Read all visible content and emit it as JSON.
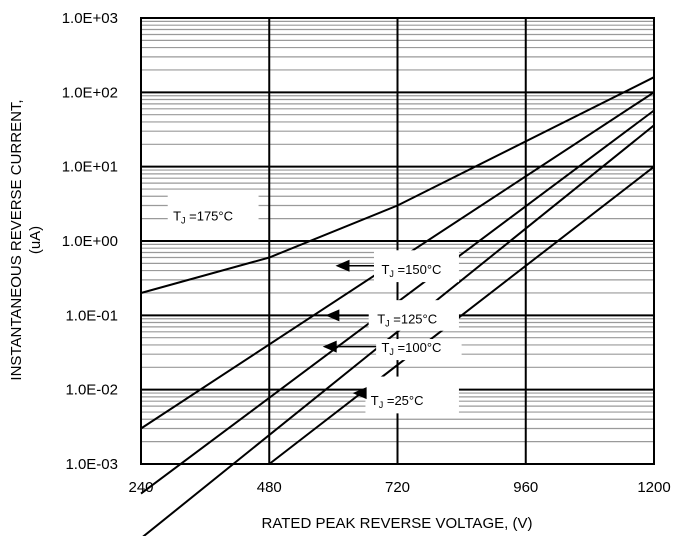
{
  "chart_data": {
    "type": "line",
    "title": "",
    "xlabel": "RATED PEAK REVERSE VOLTAGE, (V)",
    "ylabel_line1": "INSTANTANEOUS REVERSE CURRENT,",
    "ylabel_line2": "(uA)",
    "xlim": [
      240,
      1200
    ],
    "ylim": [
      0.001,
      1000
    ],
    "yscale": "log",
    "grid": true,
    "x_ticks": [
      "240",
      "480",
      "720",
      "960",
      "1200"
    ],
    "y_ticks": [
      "1.0E-03",
      "1.0E-02",
      "1.0E-01",
      "1.0E+00",
      "1.0E+01",
      "1.0E+02",
      "1.0E+03"
    ],
    "series": [
      {
        "name": "TJ =175°C",
        "x": [
          240,
          480,
          720,
          1200
        ],
        "y": [
          0.2,
          0.6,
          3.0,
          160
        ]
      },
      {
        "name": "TJ =150°C",
        "x": [
          240,
          1200
        ],
        "y": [
          0.003,
          100
        ]
      },
      {
        "name": "TJ =125°C",
        "x": [
          240,
          1200
        ],
        "y": [
          0.0004,
          57
        ]
      },
      {
        "name": "TJ =100°C",
        "x": [
          240,
          1200
        ],
        "y": [
          0.0001,
          36
        ]
      },
      {
        "name": "TJ =25°C",
        "x": [
          480,
          1200
        ],
        "y": [
          0.001,
          10
        ]
      }
    ],
    "annotations": [
      {
        "prefix": "T",
        "sub": "J",
        "suffix": " =175°C"
      },
      {
        "prefix": "T",
        "sub": "J",
        "suffix": " =150°C"
      },
      {
        "prefix": "T",
        "sub": "J",
        "suffix": " =125°C"
      },
      {
        "prefix": "T",
        "sub": "J",
        "suffix": " =100°C"
      },
      {
        "prefix": "T",
        "sub": "J",
        "suffix": " =25°C"
      }
    ]
  }
}
